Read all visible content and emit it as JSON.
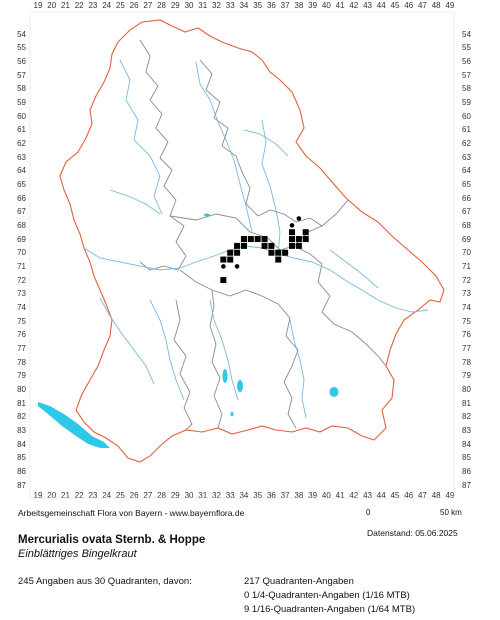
{
  "axes": {
    "x_ticks": [
      "19",
      "20",
      "21",
      "22",
      "23",
      "24",
      "25",
      "26",
      "27",
      "28",
      "29",
      "30",
      "31",
      "32",
      "33",
      "34",
      "35",
      "36",
      "37",
      "38",
      "39",
      "40",
      "41",
      "42",
      "43",
      "44",
      "45",
      "46",
      "47",
      "48",
      "49"
    ],
    "y_ticks": [
      "54",
      "55",
      "56",
      "57",
      "58",
      "59",
      "60",
      "61",
      "62",
      "63",
      "64",
      "65",
      "66",
      "67",
      "68",
      "69",
      "70",
      "71",
      "72",
      "73",
      "74",
      "75",
      "76",
      "77",
      "78",
      "79",
      "80",
      "81",
      "82",
      "83",
      "84",
      "85",
      "86",
      "87"
    ]
  },
  "map": {
    "occurrences_quadrants": [
      {
        "x": 34.0,
        "y": 69.0
      },
      {
        "x": 34.5,
        "y": 69.0
      },
      {
        "x": 35.0,
        "y": 69.0
      },
      {
        "x": 35.5,
        "y": 69.0
      },
      {
        "x": 36.0,
        "y": 69.5
      },
      {
        "x": 33.5,
        "y": 69.5
      },
      {
        "x": 34.0,
        "y": 69.5
      },
      {
        "x": 33.0,
        "y": 70.0
      },
      {
        "x": 33.5,
        "y": 70.0
      },
      {
        "x": 35.5,
        "y": 69.5
      },
      {
        "x": 36.0,
        "y": 70.0
      },
      {
        "x": 36.5,
        "y": 70.0
      },
      {
        "x": 37.0,
        "y": 70.0
      },
      {
        "x": 37.5,
        "y": 69.5
      },
      {
        "x": 38.0,
        "y": 69.5
      },
      {
        "x": 37.5,
        "y": 69.0
      },
      {
        "x": 37.5,
        "y": 68.5
      },
      {
        "x": 38.0,
        "y": 69.0
      },
      {
        "x": 38.5,
        "y": 68.5
      },
      {
        "x": 38.5,
        "y": 69.0
      },
      {
        "x": 32.5,
        "y": 70.5
      },
      {
        "x": 33.0,
        "y": 70.5
      },
      {
        "x": 36.5,
        "y": 70.5
      },
      {
        "x": 32.5,
        "y": 72.0
      }
    ],
    "occurrences_dots": [
      {
        "x": 38.0,
        "y": 67.5
      },
      {
        "x": 37.5,
        "y": 68.0
      },
      {
        "x": 32.5,
        "y": 71.0
      },
      {
        "x": 33.5,
        "y": 71.0
      },
      {
        "x": 37.0,
        "y": 70.0
      }
    ]
  },
  "footer": {
    "organization": "Arbeitsgemeinschaft Flora von Bayern - www.bayernflora.de",
    "scale_start": "0",
    "scale_end": "50 km",
    "date": "Datenstand: 05.06.2025",
    "scientific_name": "Mercurialis ovata Sternb. & Hoppe",
    "common_name": "Einblättriges Bingelkraut",
    "summary": "245 Angaben aus 30 Quadranten, davon:",
    "stat_quadrant": "217 Quadranten-Angaben",
    "stat_quarter": "0 1/4-Quadranten-Angaben (1/16 MTB)",
    "stat_sixteenth": "9 1/16-Quadranten-Angaben (1/64 MTB)"
  },
  "colors": {
    "state_border": "#e06040",
    "district_border": "#8a8a8a",
    "rivers": "#7ab8e0",
    "lakes": "#30c8e8",
    "occurrence": "#000000"
  }
}
